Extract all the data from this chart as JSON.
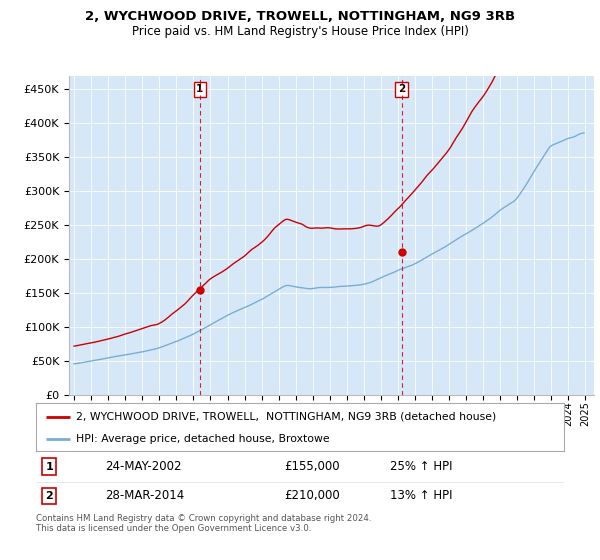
{
  "title": "2, WYCHWOOD DRIVE, TROWELL, NOTTINGHAM, NG9 3RB",
  "subtitle": "Price paid vs. HM Land Registry's House Price Index (HPI)",
  "ylim": [
    0,
    470000
  ],
  "yticks": [
    0,
    50000,
    100000,
    150000,
    200000,
    250000,
    300000,
    350000,
    400000,
    450000
  ],
  "background_color": "#d6e8f7",
  "line1_color": "#cc0000",
  "line2_color": "#7aadd4",
  "sale1_price": 155000,
  "sale2_price": 210000,
  "sale1_year": 2002.37,
  "sale2_year": 2014.21,
  "legend_line1": "2, WYCHWOOD DRIVE, TROWELL,  NOTTINGHAM, NG9 3RB (detached house)",
  "legend_line2": "HPI: Average price, detached house, Broxtowe",
  "footnote": "Contains HM Land Registry data © Crown copyright and database right 2024.\nThis data is licensed under the Open Government Licence v3.0."
}
